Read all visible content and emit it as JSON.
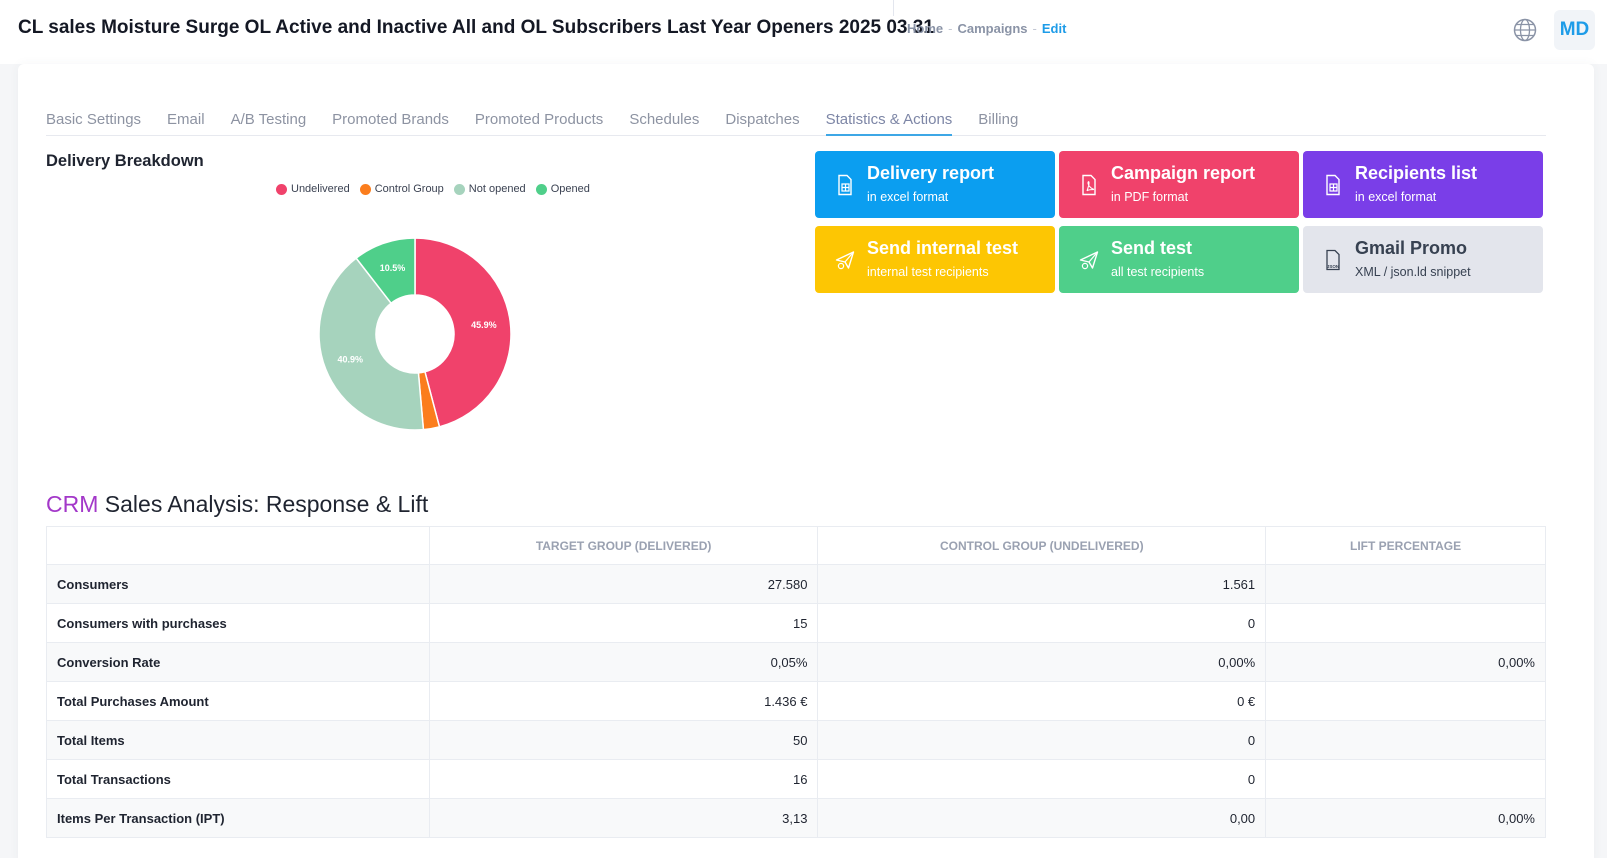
{
  "header": {
    "title": "CL sales Moisture Surge OL Active and Inactive All and OL Subscribers Last Year Openers 2025 03 31",
    "breadcrumb": {
      "home": "Home",
      "separator": "-",
      "campaigns": "Campaigns",
      "current": "Edit"
    },
    "avatar_initials": "MD",
    "globe_icon": "globe-icon"
  },
  "tabs": [
    {
      "label": "Basic Settings"
    },
    {
      "label": "Email"
    },
    {
      "label": "A/B Testing"
    },
    {
      "label": "Promoted Brands"
    },
    {
      "label": "Promoted Products"
    },
    {
      "label": "Schedules"
    },
    {
      "label": "Dispatches"
    },
    {
      "label": "Statistics & Actions",
      "active": true
    },
    {
      "label": "Billing"
    }
  ],
  "delivery": {
    "title": "Delivery Breakdown",
    "chart_data": {
      "type": "pie",
      "donut": true,
      "legend_position": "top",
      "categories": [
        "Undelivered",
        "Control Group",
        "Not opened",
        "Opened"
      ],
      "values": [
        45.9,
        2.7,
        40.9,
        10.5
      ],
      "labels": [
        "45.9%",
        "",
        "40.9%",
        "10.5%"
      ],
      "colors": [
        "#f0426b",
        "#fb7d1d",
        "#a6d3bd",
        "#4fcf8a"
      ]
    }
  },
  "actions": [
    {
      "title": "Delivery report",
      "subtitle": "in excel format",
      "color": "#0b9ef0",
      "icon": "excel-file-icon"
    },
    {
      "title": "Campaign report",
      "subtitle": "in PDF format",
      "color": "#f0426b",
      "icon": "pdf-file-icon"
    },
    {
      "title": "Recipients list",
      "subtitle": "in excel format",
      "color": "#7a3ee8",
      "icon": "excel-file-icon"
    },
    {
      "title": "Send internal test",
      "subtitle": "internal test recipients",
      "color": "#fdc603",
      "icon": "send-icon"
    },
    {
      "title": "Send test",
      "subtitle": "all test recipients",
      "color": "#4fcf8a",
      "icon": "send-icon"
    },
    {
      "title": "Gmail Promo",
      "subtitle": "XML / json.ld snippet",
      "color": "#e3e5ec",
      "icon": "json-file-icon",
      "json_label": "JSON"
    }
  ],
  "crm": {
    "title_highlight": "CRM",
    "title_rest": " Sales Analysis: Response & Lift",
    "columns": [
      "",
      "Target Group (Delivered)",
      "Control Group (Undelivered)",
      "Lift Percentage"
    ],
    "rows": [
      [
        "Consumers",
        "27.580",
        "1.561",
        ""
      ],
      [
        "Consumers with purchases",
        "15",
        "0",
        ""
      ],
      [
        "Conversion Rate",
        "0,05%",
        "0,00%",
        "0,00%"
      ],
      [
        "Total Purchases Amount",
        "1.436 €",
        "0 €",
        ""
      ],
      [
        "Total Items",
        "50",
        "0",
        ""
      ],
      [
        "Total Transactions",
        "16",
        "0",
        ""
      ],
      [
        "Items Per Transaction (IPT)",
        "3,13",
        "0,00",
        "0,00%"
      ]
    ]
  }
}
